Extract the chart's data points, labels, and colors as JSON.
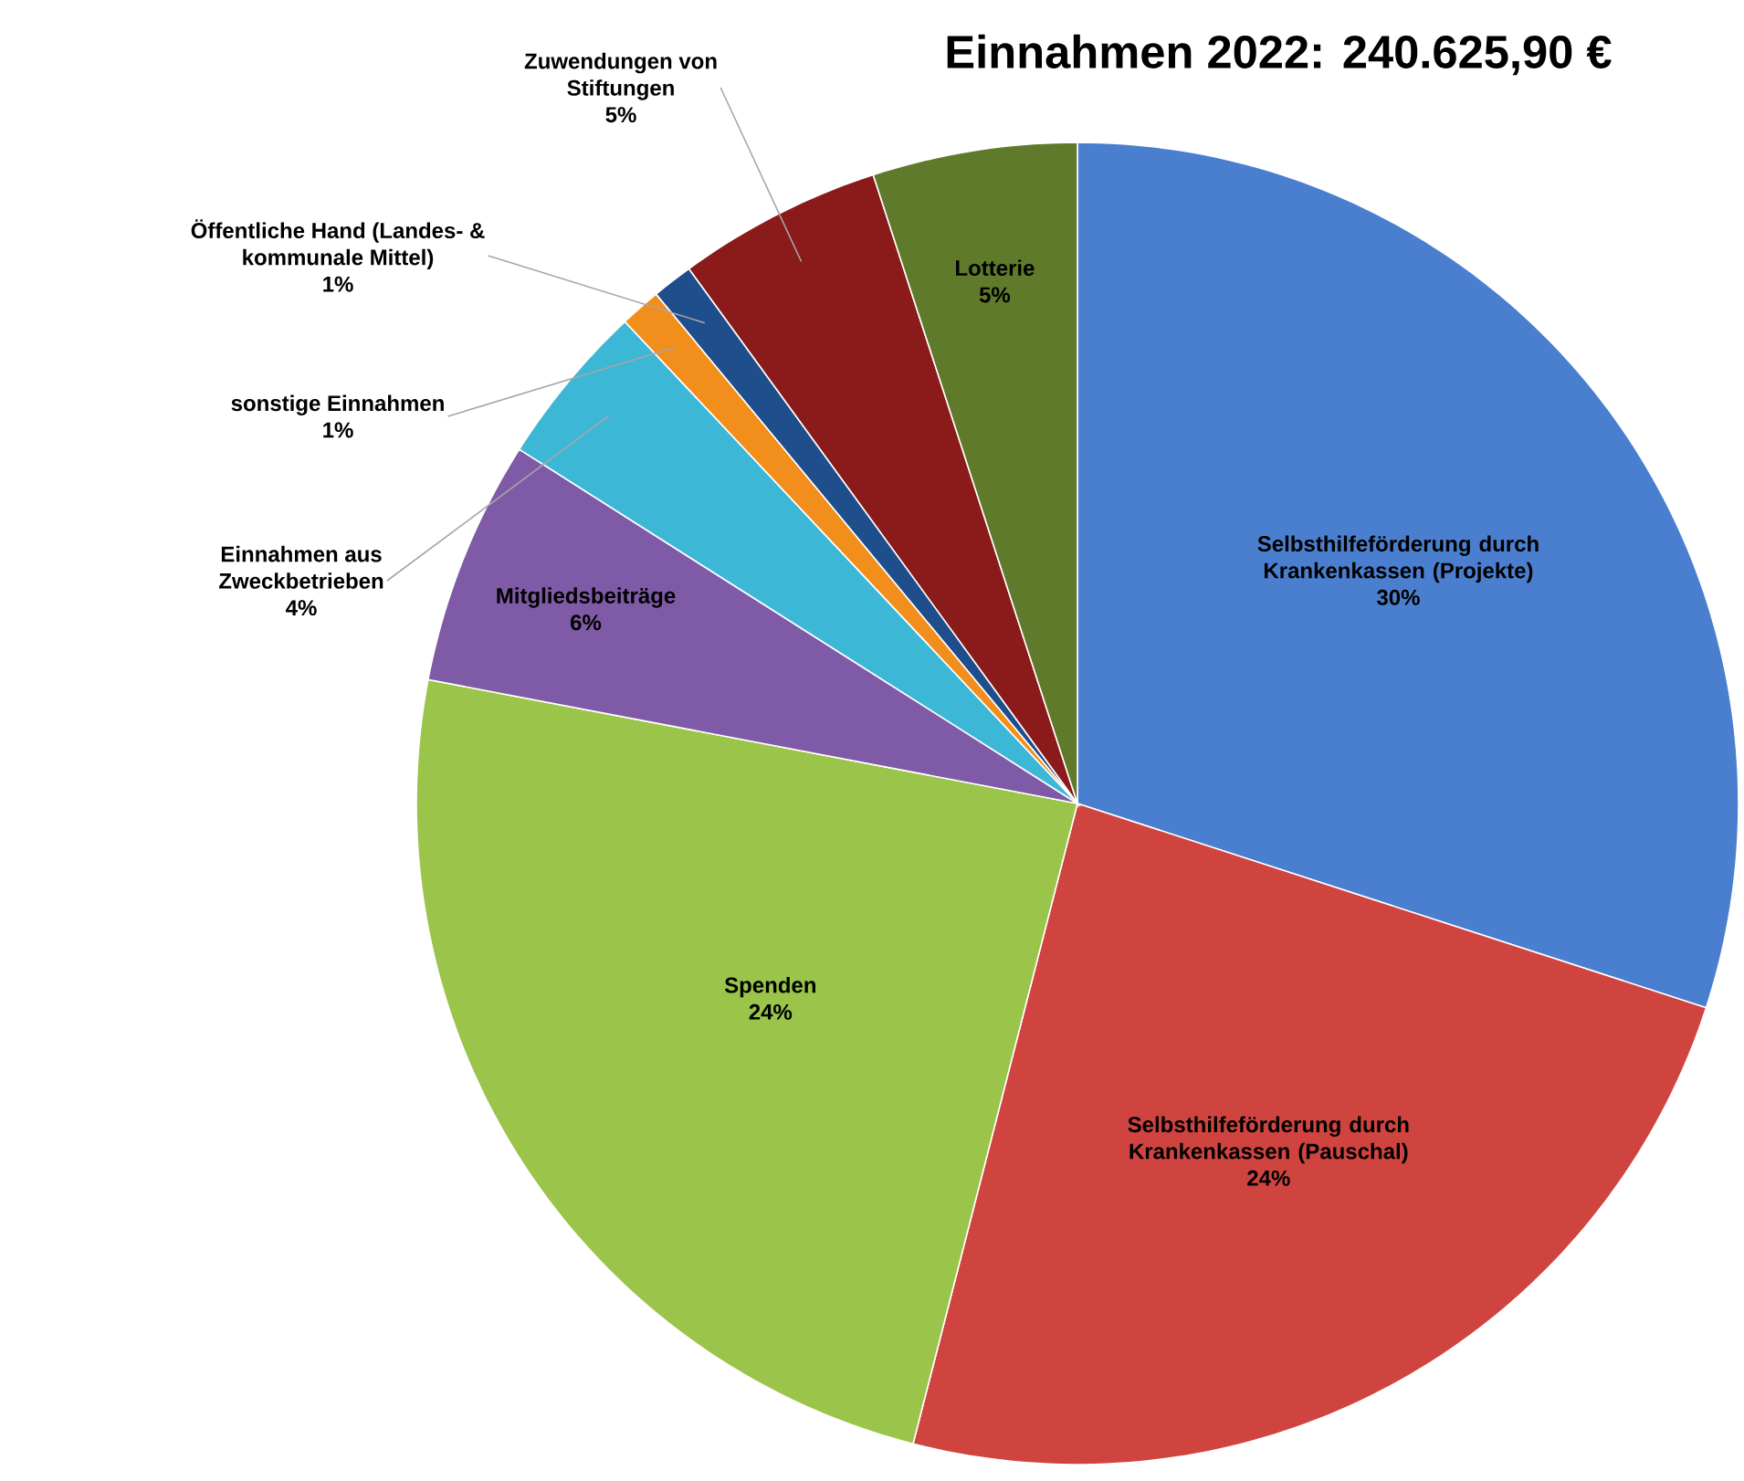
{
  "chart_data": {
    "type": "pie",
    "title": "Einnahmen 2022: 240.625,90 €",
    "categories": [
      "Selbsthilfeförderung durch Krankenkassen (Projekte)",
      "Selbsthilfeförderung durch Krankenkassen (Pauschal)",
      "Spenden",
      "Mitgliedsbeiträge",
      "Einnahmen aus Zweckbetrieben",
      "sonstige Einnahmen",
      "Öffentliche Hand (Landes- & kommunale Mittel)",
      "Zuwendungen von Stiftungen",
      "Lotterie"
    ],
    "values": [
      30,
      24,
      24,
      6,
      4,
      1,
      1,
      5,
      5
    ],
    "value_labels": [
      "30%",
      "24%",
      "24%",
      "6%",
      "4%",
      "1%",
      "1%",
      "5%",
      "5%"
    ],
    "colors": [
      "#4a7fd0",
      "#d0443f",
      "#9bc44a",
      "#7f5aa6",
      "#3cb8d6",
      "#f28e1c",
      "#1f4e8c",
      "#8b1a1a",
      "#5f7a2a"
    ]
  }
}
